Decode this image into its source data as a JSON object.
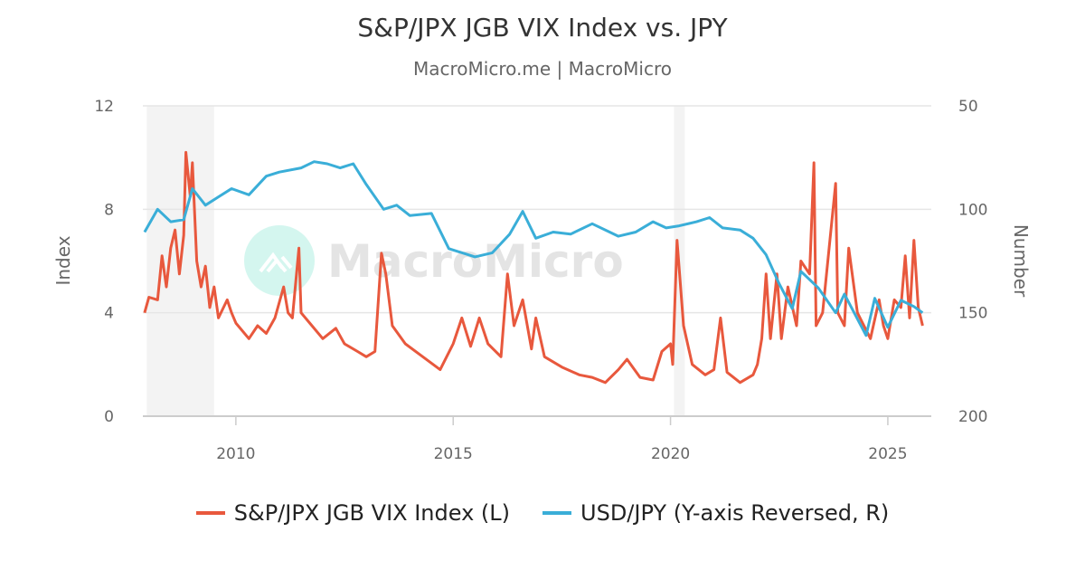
{
  "chart_data": {
    "type": "line",
    "title": "S&P/JPX JGB VIX Index vs. JPY",
    "subtitle": "MacroMicro.me | MacroMicro",
    "watermark": "MacroMicro",
    "xlim": [
      2007.86,
      2026.0
    ],
    "x_ticks": [
      2010,
      2015,
      2020,
      2025
    ],
    "y_left": {
      "label": "Index",
      "range": [
        0,
        12
      ],
      "ticks": [
        0,
        4,
        8,
        12
      ]
    },
    "y_right": {
      "label": "Number",
      "range": [
        50,
        200
      ],
      "reversed": true,
      "ticks": [
        50,
        100,
        150,
        200
      ]
    },
    "grid": true,
    "legend_position": "bottom",
    "shaded_periods": [
      [
        2007.95,
        2009.5
      ],
      [
        2020.08,
        2020.33
      ]
    ],
    "series": [
      {
        "name": "S&P/JPX JGB VIX Index (L)",
        "axis": "left",
        "color": "#e8583d",
        "points": [
          [
            2007.9,
            4.0
          ],
          [
            2008.0,
            4.6
          ],
          [
            2008.2,
            4.5
          ],
          [
            2008.3,
            6.2
          ],
          [
            2008.4,
            5.0
          ],
          [
            2008.5,
            6.5
          ],
          [
            2008.6,
            7.2
          ],
          [
            2008.7,
            5.5
          ],
          [
            2008.8,
            7.0
          ],
          [
            2008.85,
            10.2
          ],
          [
            2008.95,
            8.5
          ],
          [
            2009.0,
            9.8
          ],
          [
            2009.1,
            6.0
          ],
          [
            2009.2,
            5.0
          ],
          [
            2009.3,
            5.8
          ],
          [
            2009.4,
            4.2
          ],
          [
            2009.5,
            5.0
          ],
          [
            2009.6,
            3.8
          ],
          [
            2009.8,
            4.5
          ],
          [
            2009.9,
            4.0
          ],
          [
            2010.0,
            3.6
          ],
          [
            2010.3,
            3.0
          ],
          [
            2010.5,
            3.5
          ],
          [
            2010.7,
            3.2
          ],
          [
            2010.9,
            3.8
          ],
          [
            2011.1,
            5.0
          ],
          [
            2011.2,
            4.0
          ],
          [
            2011.3,
            3.8
          ],
          [
            2011.45,
            6.5
          ],
          [
            2011.5,
            4.0
          ],
          [
            2011.7,
            3.6
          ],
          [
            2012.0,
            3.0
          ],
          [
            2012.3,
            3.4
          ],
          [
            2012.5,
            2.8
          ],
          [
            2012.8,
            2.5
          ],
          [
            2013.0,
            2.3
          ],
          [
            2013.2,
            2.5
          ],
          [
            2013.35,
            6.3
          ],
          [
            2013.45,
            5.5
          ],
          [
            2013.6,
            3.5
          ],
          [
            2013.9,
            2.8
          ],
          [
            2014.3,
            2.3
          ],
          [
            2014.7,
            1.8
          ],
          [
            2015.0,
            2.8
          ],
          [
            2015.2,
            3.8
          ],
          [
            2015.4,
            2.7
          ],
          [
            2015.6,
            3.8
          ],
          [
            2015.8,
            2.8
          ],
          [
            2016.1,
            2.3
          ],
          [
            2016.25,
            5.5
          ],
          [
            2016.4,
            3.5
          ],
          [
            2016.6,
            4.5
          ],
          [
            2016.8,
            2.6
          ],
          [
            2016.9,
            3.8
          ],
          [
            2017.1,
            2.3
          ],
          [
            2017.5,
            1.9
          ],
          [
            2017.9,
            1.6
          ],
          [
            2018.2,
            1.5
          ],
          [
            2018.5,
            1.3
          ],
          [
            2018.8,
            1.8
          ],
          [
            2019.0,
            2.2
          ],
          [
            2019.3,
            1.5
          ],
          [
            2019.6,
            1.4
          ],
          [
            2019.8,
            2.5
          ],
          [
            2020.0,
            2.8
          ],
          [
            2020.05,
            2.0
          ],
          [
            2020.15,
            6.8
          ],
          [
            2020.3,
            3.5
          ],
          [
            2020.5,
            2.0
          ],
          [
            2020.8,
            1.6
          ],
          [
            2021.0,
            1.8
          ],
          [
            2021.15,
            3.8
          ],
          [
            2021.3,
            1.7
          ],
          [
            2021.6,
            1.3
          ],
          [
            2021.9,
            1.6
          ],
          [
            2022.0,
            2.0
          ],
          [
            2022.1,
            3.0
          ],
          [
            2022.2,
            5.5
          ],
          [
            2022.3,
            3.0
          ],
          [
            2022.45,
            5.5
          ],
          [
            2022.55,
            3.0
          ],
          [
            2022.7,
            5.0
          ],
          [
            2022.9,
            3.5
          ],
          [
            2023.0,
            6.0
          ],
          [
            2023.2,
            5.5
          ],
          [
            2023.3,
            9.8
          ],
          [
            2023.35,
            3.5
          ],
          [
            2023.5,
            4.0
          ],
          [
            2023.8,
            9.0
          ],
          [
            2023.85,
            4.0
          ],
          [
            2024.0,
            3.5
          ],
          [
            2024.1,
            6.5
          ],
          [
            2024.3,
            4.0
          ],
          [
            2024.6,
            3.0
          ],
          [
            2024.8,
            4.5
          ],
          [
            2024.9,
            3.5
          ],
          [
            2025.0,
            3.0
          ],
          [
            2025.15,
            4.5
          ],
          [
            2025.3,
            4.2
          ],
          [
            2025.4,
            6.2
          ],
          [
            2025.5,
            3.8
          ],
          [
            2025.6,
            6.8
          ],
          [
            2025.7,
            4.2
          ],
          [
            2025.8,
            3.5
          ]
        ]
      },
      {
        "name": "USD/JPY (Y-axis Reversed, R)",
        "axis": "right",
        "color": "#3aaed8",
        "points": [
          [
            2007.9,
            111
          ],
          [
            2008.2,
            100
          ],
          [
            2008.5,
            106
          ],
          [
            2008.8,
            105
          ],
          [
            2009.0,
            90
          ],
          [
            2009.3,
            98
          ],
          [
            2009.6,
            94
          ],
          [
            2009.9,
            90
          ],
          [
            2010.3,
            93
          ],
          [
            2010.7,
            84
          ],
          [
            2011.0,
            82
          ],
          [
            2011.5,
            80
          ],
          [
            2011.8,
            77
          ],
          [
            2012.1,
            78
          ],
          [
            2012.4,
            80
          ],
          [
            2012.7,
            78
          ],
          [
            2013.0,
            88
          ],
          [
            2013.4,
            100
          ],
          [
            2013.7,
            98
          ],
          [
            2014.0,
            103
          ],
          [
            2014.5,
            102
          ],
          [
            2014.9,
            119
          ],
          [
            2015.5,
            123
          ],
          [
            2015.9,
            121
          ],
          [
            2016.3,
            112
          ],
          [
            2016.6,
            101
          ],
          [
            2016.9,
            114
          ],
          [
            2017.3,
            111
          ],
          [
            2017.7,
            112
          ],
          [
            2018.2,
            107
          ],
          [
            2018.8,
            113
          ],
          [
            2019.2,
            111
          ],
          [
            2019.6,
            106
          ],
          [
            2019.9,
            109
          ],
          [
            2020.2,
            108
          ],
          [
            2020.6,
            106
          ],
          [
            2020.9,
            104
          ],
          [
            2021.2,
            109
          ],
          [
            2021.6,
            110
          ],
          [
            2021.9,
            114
          ],
          [
            2022.2,
            122
          ],
          [
            2022.5,
            136
          ],
          [
            2022.8,
            148
          ],
          [
            2023.0,
            130
          ],
          [
            2023.4,
            138
          ],
          [
            2023.8,
            150
          ],
          [
            2024.0,
            141
          ],
          [
            2024.5,
            161
          ],
          [
            2024.7,
            143
          ],
          [
            2025.0,
            157
          ],
          [
            2025.3,
            144
          ],
          [
            2025.6,
            147
          ],
          [
            2025.8,
            150
          ]
        ]
      }
    ]
  }
}
